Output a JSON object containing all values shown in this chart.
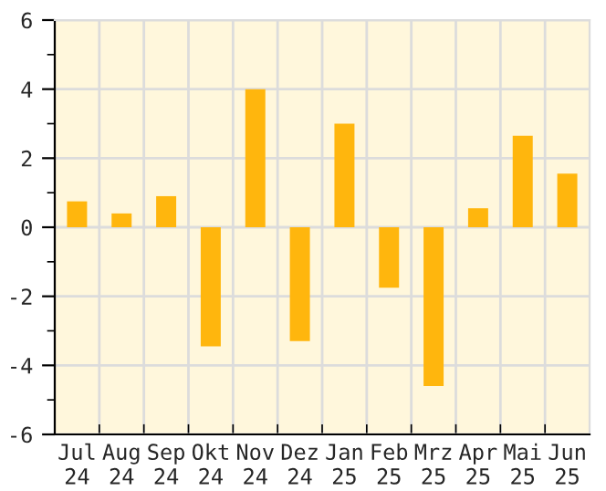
{
  "chart_data": {
    "type": "bar",
    "categories": [
      "Jul\n24",
      "Aug\n24",
      "Sep\n24",
      "Okt\n24",
      "Nov\n24",
      "Dez\n24",
      "Jan\n25",
      "Feb\n25",
      "Mrz\n25",
      "Apr\n25",
      "Mai\n25",
      "Jun\n25"
    ],
    "values": [
      0.75,
      0.4,
      0.9,
      -3.45,
      4.0,
      -3.3,
      3.0,
      -1.75,
      -4.6,
      0.55,
      2.65,
      1.55
    ],
    "color": "#ffb60d",
    "ylim": [
      -6,
      6
    ],
    "yticks": [
      -6,
      {
        "value": -5,
        "label": null
      },
      -4,
      {
        "value": -3,
        "label": null
      },
      -2,
      {
        "value": -1,
        "label": null
      },
      0,
      {
        "value": 1,
        "label": null
      },
      2,
      {
        "value": 3,
        "label": null
      },
      4,
      {
        "value": 5,
        "label": null
      },
      6
    ],
    "grid": true,
    "legend": false
  }
}
